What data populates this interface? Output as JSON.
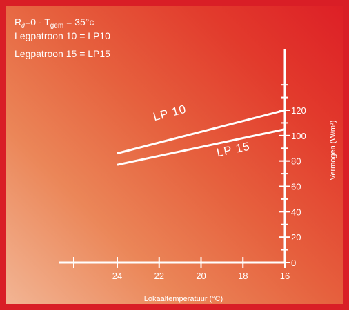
{
  "header": {
    "line1": {
      "main": "R",
      "sub1": "∂",
      "mid": "=0 - T",
      "sub2": "gem",
      "end": " = 35°c"
    },
    "line2": "Legpatroon 10 = LP10",
    "line3": "Legpatroon 15 = LP15"
  },
  "colors": {
    "frame": "#d91e26",
    "text": "#ffffff",
    "gradient_light": "#f2b594"
  },
  "chart_data": {
    "type": "line",
    "xlabel": "Lokaaltemperatuur (°C)",
    "ylabel": "Vermogen (W/m²)",
    "x_reversed": true,
    "xlim": [
      27,
      16
    ],
    "ylim": [
      0,
      140
    ],
    "x_ticks": [
      24,
      22,
      20,
      18,
      16
    ],
    "y_ticks": [
      0,
      20,
      40,
      60,
      80,
      100,
      120
    ],
    "series": [
      {
        "name": "LP 10",
        "x": [
          24,
          16
        ],
        "y": [
          86,
          120
        ]
      },
      {
        "name": "LP 15",
        "x": [
          24,
          16
        ],
        "y": [
          77,
          105
        ]
      }
    ]
  }
}
